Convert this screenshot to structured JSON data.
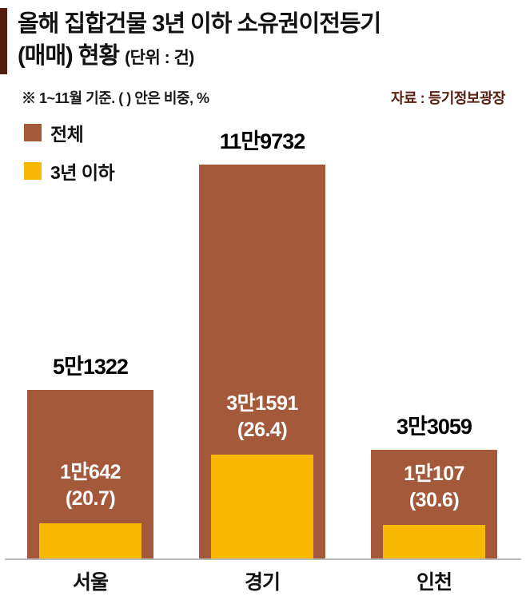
{
  "title": {
    "line1": "올해 집합건물 3년 이하 소유권이전등기",
    "line2": "(매매) 현황",
    "unit": "(단위 : 건)"
  },
  "note": "※ 1~11월 기준. (  ) 안은 비중, %",
  "source": "자료 : 등기정보광장",
  "colors": {
    "accent": "#551d10",
    "total_bar": "#a4593a",
    "sub_bar": "#f8b703",
    "source_text": "#5a2012"
  },
  "legend": [
    {
      "label": "전체",
      "color": "#a4593a"
    },
    {
      "label": "3년 이하",
      "color": "#f8b703"
    }
  ],
  "chart_data": {
    "type": "bar",
    "title": "올해 집합건물 3년 이하 소유권이전등기 (매매) 현황",
    "unit": "건",
    "note": "1~11월 기준, 괄호 안은 비중 %",
    "categories": [
      "서울",
      "경기",
      "인천"
    ],
    "series": [
      {
        "name": "전체",
        "color": "#a4593a",
        "values": [
          51322,
          119732,
          33059
        ],
        "labels": [
          "5만1322",
          "11만9732",
          "3만3059"
        ]
      },
      {
        "name": "3년 이하",
        "color": "#f8b703",
        "values": [
          10642,
          31591,
          10107
        ],
        "labels": [
          "1만642",
          "3만1591",
          "1만107"
        ],
        "percent_labels": [
          "(20.7)",
          "(26.4)",
          "(30.6)"
        ],
        "percents": [
          20.7,
          26.4,
          30.6
        ]
      }
    ],
    "ylim": [
      0,
      119732
    ],
    "legend_position": "top-left",
    "grid": false
  }
}
